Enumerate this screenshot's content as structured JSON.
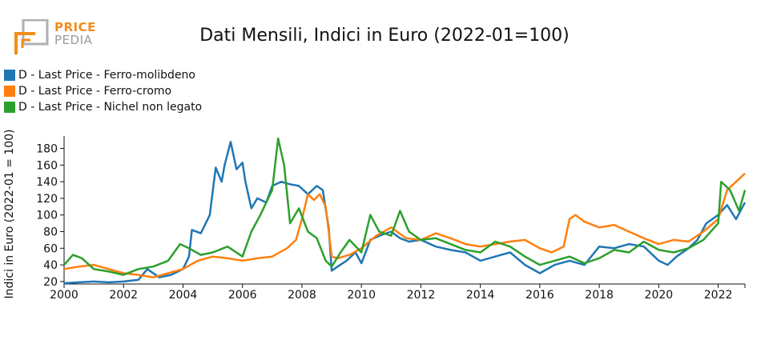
{
  "logo": {
    "line1": "PRICE",
    "line2": "PEDIA",
    "accent_color": "#f28c1c",
    "gray_color": "#9a9a9a"
  },
  "chart_data": {
    "type": "line",
    "title": "Dati Mensili, Indici in Euro (2022-01=100)",
    "xlabel": "",
    "ylabel": "Indici in Euro (2022-01 = 100)",
    "xlim": [
      2000,
      2022.9
    ],
    "ylim": [
      17,
      195
    ],
    "x_ticks": [
      2000,
      2002,
      2004,
      2006,
      2008,
      2010,
      2012,
      2014,
      2016,
      2018,
      2020,
      2022
    ],
    "y_ticks": [
      20,
      40,
      60,
      80,
      100,
      120,
      140,
      160,
      180
    ],
    "grid": false,
    "legend_position": "top-left",
    "series": [
      {
        "name": "D - Last Price - Ferro-molibdeno",
        "color": "#1f77b4",
        "x": [
          2000,
          2000.5,
          2001,
          2001.5,
          2002,
          2002.5,
          2002.8,
          2003.2,
          2003.6,
          2004,
          2004.2,
          2004.3,
          2004.6,
          2004.9,
          2005.1,
          2005.3,
          2005.4,
          2005.6,
          2005.8,
          2006,
          2006.1,
          2006.3,
          2006.5,
          2006.8,
          2007,
          2007.3,
          2007.6,
          2007.9,
          2008.2,
          2008.5,
          2008.7,
          2008.9,
          2009,
          2009.2,
          2009.5,
          2009.8,
          2010,
          2010.3,
          2010.6,
          2011,
          2011.3,
          2011.6,
          2012,
          2012.5,
          2013,
          2013.5,
          2014,
          2014.5,
          2015,
          2015.5,
          2016,
          2016.5,
          2017,
          2017.5,
          2018,
          2018.5,
          2019,
          2019.5,
          2020,
          2020.3,
          2020.6,
          2021,
          2021.3,
          2021.6,
          2022,
          2022.3,
          2022.6,
          2022.9
        ],
        "y": [
          18,
          19,
          20,
          19,
          20,
          22,
          35,
          25,
          28,
          35,
          50,
          82,
          78,
          100,
          157,
          140,
          160,
          188,
          155,
          163,
          140,
          108,
          120,
          115,
          135,
          140,
          137,
          135,
          125,
          135,
          130,
          85,
          33,
          38,
          45,
          55,
          42,
          70,
          75,
          80,
          72,
          68,
          70,
          62,
          58,
          55,
          45,
          50,
          55,
          40,
          30,
          40,
          45,
          40,
          62,
          60,
          65,
          62,
          45,
          40,
          50,
          60,
          70,
          90,
          100,
          112,
          95,
          115
        ]
      },
      {
        "name": "D - Last Price - Ferro-cromo",
        "color": "#ff7f0e",
        "x": [
          2000,
          2000.5,
          2001,
          2001.5,
          2002,
          2002.5,
          2003,
          2003.5,
          2004,
          2004.5,
          2005,
          2005.5,
          2006,
          2006.5,
          2007,
          2007.5,
          2007.8,
          2008,
          2008.2,
          2008.4,
          2008.6,
          2008.8,
          2009,
          2009.2,
          2009.6,
          2010,
          2010.5,
          2011,
          2011.5,
          2012,
          2012.5,
          2013,
          2013.5,
          2014,
          2014.5,
          2015,
          2015.5,
          2016,
          2016.4,
          2016.8,
          2017,
          2017.2,
          2017.5,
          2018,
          2018.5,
          2019,
          2019.5,
          2020,
          2020.5,
          2021,
          2021.5,
          2022,
          2022.3,
          2022.6,
          2022.9
        ],
        "y": [
          35,
          38,
          40,
          35,
          30,
          28,
          25,
          30,
          35,
          45,
          50,
          48,
          45,
          48,
          50,
          60,
          70,
          95,
          125,
          118,
          125,
          110,
          50,
          48,
          52,
          60,
          75,
          85,
          72,
          70,
          78,
          72,
          65,
          62,
          65,
          68,
          70,
          60,
          55,
          62,
          95,
          100,
          92,
          85,
          88,
          80,
          72,
          65,
          70,
          68,
          80,
          95,
          130,
          140,
          150
        ]
      },
      {
        "name": "D - Last Price - Nichel non legato",
        "color": "#2ca02c",
        "x": [
          2000,
          2000.3,
          2000.6,
          2001,
          2001.5,
          2002,
          2002.5,
          2003,
          2003.5,
          2003.9,
          2004.2,
          2004.6,
          2005,
          2005.5,
          2006,
          2006.3,
          2006.6,
          2007,
          2007.2,
          2007.4,
          2007.6,
          2007.9,
          2008.2,
          2008.5,
          2008.8,
          2009,
          2009.3,
          2009.6,
          2010,
          2010.3,
          2010.6,
          2011,
          2011.3,
          2011.6,
          2012,
          2012.5,
          2013,
          2013.5,
          2014,
          2014.5,
          2015,
          2015.5,
          2016,
          2016.5,
          2017,
          2017.5,
          2018,
          2018.5,
          2019,
          2019.5,
          2020,
          2020.5,
          2021,
          2021.5,
          2022,
          2022.1,
          2022.4,
          2022.7,
          2022.9
        ],
        "y": [
          40,
          52,
          48,
          35,
          32,
          28,
          35,
          38,
          45,
          65,
          60,
          52,
          55,
          62,
          50,
          80,
          100,
          130,
          192,
          160,
          90,
          108,
          80,
          72,
          45,
          38,
          55,
          70,
          55,
          100,
          80,
          75,
          105,
          80,
          70,
          72,
          65,
          58,
          55,
          68,
          62,
          50,
          40,
          45,
          50,
          42,
          48,
          58,
          55,
          68,
          58,
          55,
          60,
          70,
          90,
          140,
          130,
          105,
          130
        ]
      }
    ]
  }
}
